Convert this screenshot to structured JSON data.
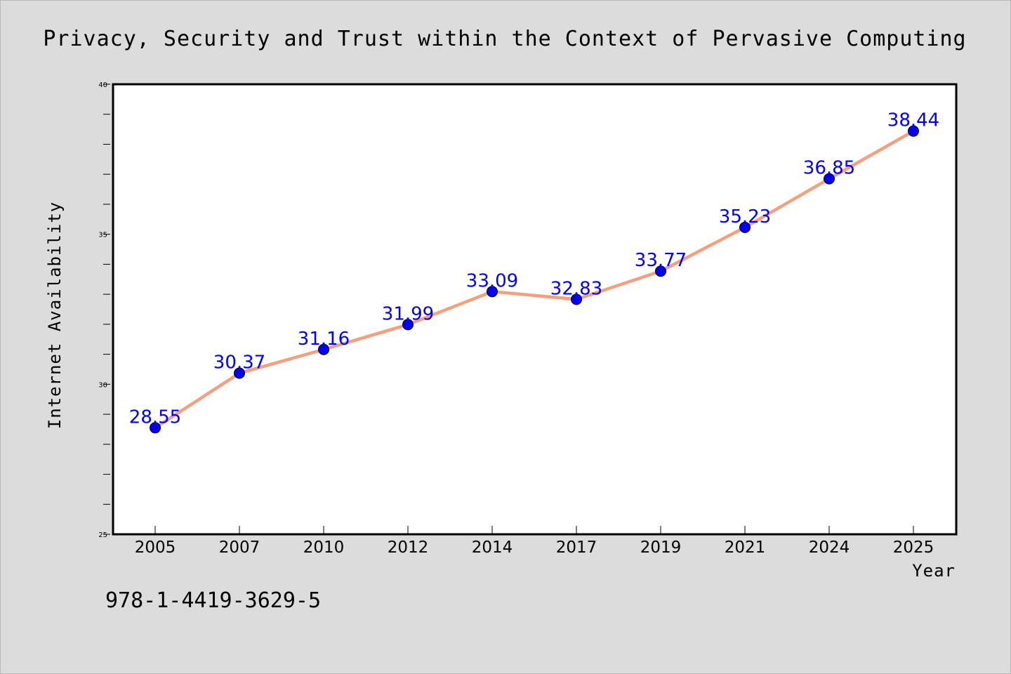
{
  "chart_data": {
    "type": "line",
    "title": "Privacy, Security and Trust within the Context of Pervasive Computing",
    "xlabel": "Year",
    "ylabel": "Internet Availability",
    "categories": [
      "2005",
      "2007",
      "2010",
      "2012",
      "2014",
      "2017",
      "2019",
      "2021",
      "2024",
      "2025"
    ],
    "series": [
      {
        "values": [
          28.55,
          30.37,
          31.16,
          31.99,
          33.09,
          32.83,
          33.77,
          35.23,
          36.85,
          38.44
        ],
        "value_labels": [
          "28.55",
          "30.37",
          "31.16",
          "31.99",
          "33.09",
          "32.83",
          "33.77",
          "35.23",
          "36.85",
          "38.44"
        ],
        "line_color": "#f4a07f",
        "marker_color": "#0000ff"
      }
    ],
    "ylim": [
      25,
      40
    ],
    "yticks": [
      25,
      30,
      35,
      40
    ],
    "ytick_labels": [
      "25",
      "30",
      "35",
      "40"
    ],
    "y_minor_step": 1,
    "grid": false,
    "legend": "none"
  },
  "footer": {
    "isbn": "978-1-4419-3629-5"
  },
  "colors": {
    "background": "#dcdcdc",
    "plot_background": "#ffffff",
    "data_label": "#0000ff"
  }
}
